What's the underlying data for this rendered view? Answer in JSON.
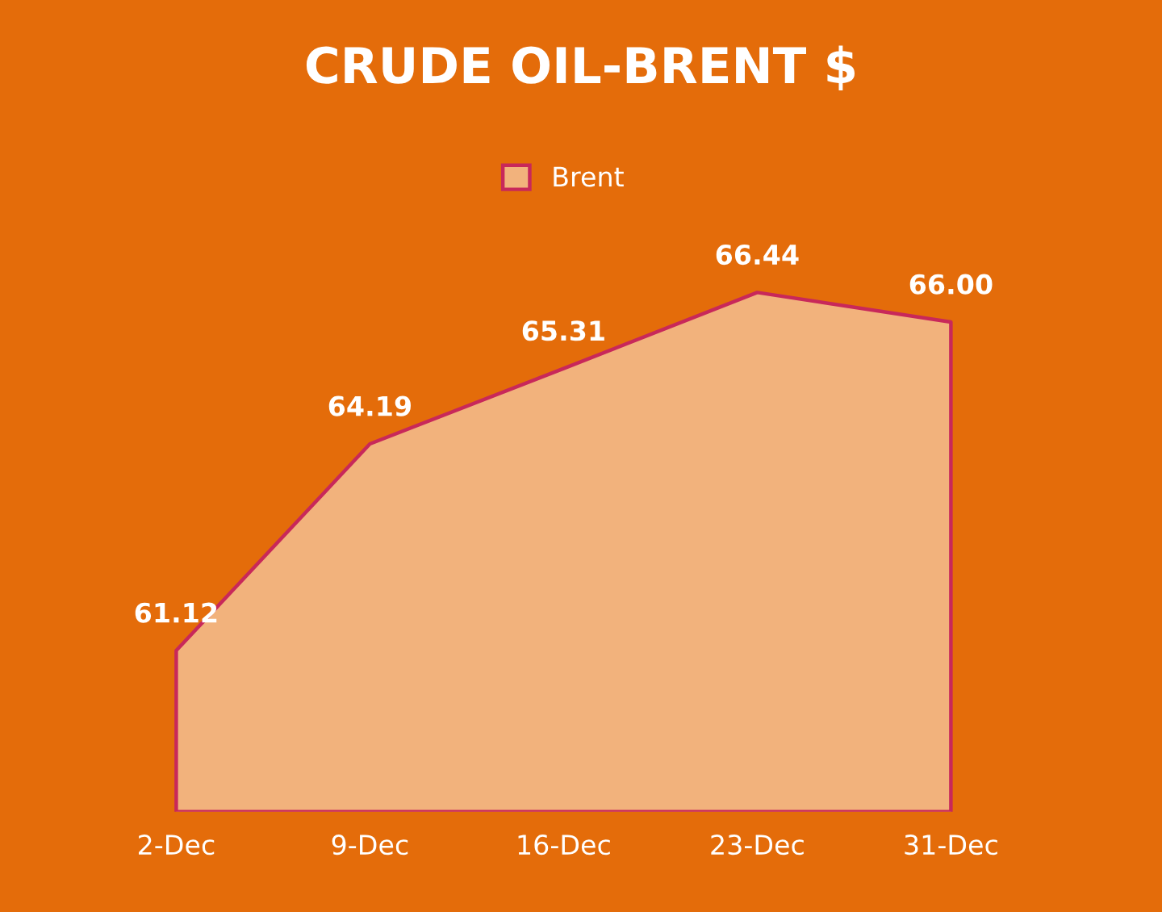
{
  "chart_data": {
    "type": "area",
    "title": "CRUDE OIL-BRENT $",
    "categories": [
      "2-Dec",
      "9-Dec",
      "16-Dec",
      "23-Dec",
      "31-Dec"
    ],
    "series": [
      {
        "name": "Brent",
        "color": "#f2b27c",
        "values": [
          61.12,
          64.19,
          65.31,
          66.44,
          66.0
        ],
        "value_labels": [
          "61.12",
          "64.19",
          "65.31",
          "66.44",
          "66.00"
        ]
      }
    ],
    "legend": "top",
    "grid": false
  }
}
